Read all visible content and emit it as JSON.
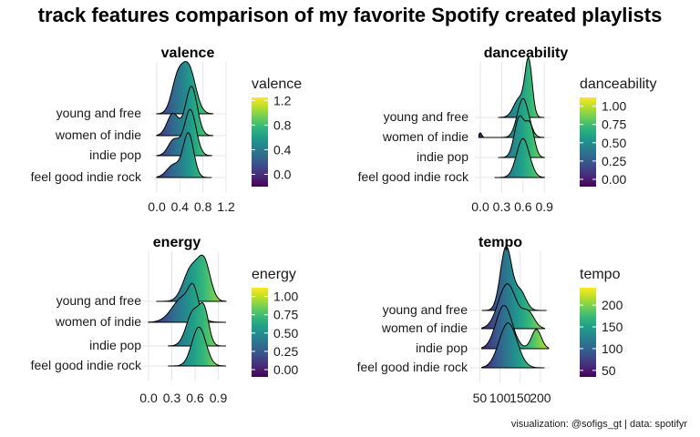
{
  "title": "track features comparison of my favorite Spotify created playlists",
  "caption": "visualization: @sofigs_gt | data: spotifyr",
  "chart_data": [
    {
      "type": "ridgeline",
      "title": "valence",
      "legend_title": "valence",
      "categories": [
        "feel good indie rock",
        "indie pop",
        "women of indie",
        "young and free"
      ],
      "xlim": [
        0.0,
        1.2
      ],
      "x_ticks": [
        "0.0",
        "0.4",
        "0.8",
        "1.2"
      ],
      "color_scale": {
        "min": -0.2,
        "max": 1.25,
        "ticks": [
          1.2,
          0.8,
          0.4,
          0.0
        ],
        "tick_labels": [
          "1.2",
          "0.8",
          "0.4",
          "0.0"
        ]
      },
      "series": [
        {
          "name": "feel good indie rock",
          "peaks": [
            [
              0.3,
              0.12,
              0.3
            ],
            [
              0.55,
              0.09,
              1.0
            ]
          ],
          "range": [
            0.0,
            0.95
          ]
        },
        {
          "name": "indie pop",
          "peaks": [
            [
              0.3,
              0.1,
              0.35
            ],
            [
              0.58,
              0.1,
              1.0
            ]
          ],
          "range": [
            0.0,
            0.95
          ]
        },
        {
          "name": "women of indie",
          "peaks": [
            [
              0.28,
              0.1,
              0.45
            ],
            [
              0.6,
              0.1,
              1.0
            ]
          ],
          "range": [
            0.0,
            0.97
          ]
        },
        {
          "name": "young and free",
          "peaks": [
            [
              0.35,
              0.1,
              0.65
            ],
            [
              0.55,
              0.12,
              1.0
            ]
          ],
          "range": [
            0.0,
            0.97
          ]
        }
      ]
    },
    {
      "type": "ridgeline",
      "title": "danceability",
      "legend_title": "danceability",
      "categories": [
        "feel good indie rock",
        "indie pop",
        "women of indie",
        "young and free"
      ],
      "xlim": [
        0.0,
        1.0
      ],
      "x_ticks": [
        "0.0",
        "0.3",
        "0.6",
        "0.9"
      ],
      "color_scale": {
        "min": -0.1,
        "max": 1.12,
        "ticks": [
          1.0,
          0.75,
          0.5,
          0.25,
          0.0
        ],
        "tick_labels": [
          "1.00",
          "0.75",
          "0.50",
          "0.25",
          "0.00"
        ]
      },
      "series": [
        {
          "name": "feel good indie rock",
          "peaks": [
            [
              0.6,
              0.09,
              1.0
            ]
          ],
          "range": [
            0.2,
            0.9
          ]
        },
        {
          "name": "indie pop",
          "peaks": [
            [
              0.55,
              0.07,
              0.9
            ],
            [
              0.7,
              0.06,
              0.7
            ]
          ],
          "range": [
            0.25,
            0.9
          ]
        },
        {
          "name": "women of indie",
          "peaks": [
            [
              0.0,
              0.02,
              0.12
            ],
            [
              0.6,
              0.08,
              1.0
            ]
          ],
          "range": [
            -0.02,
            0.9
          ]
        },
        {
          "name": "young and free",
          "peaks": [
            [
              0.68,
              0.05,
              1.0
            ],
            [
              0.55,
              0.08,
              0.35
            ]
          ],
          "range": [
            0.25,
            0.9
          ]
        }
      ]
    },
    {
      "type": "ridgeline",
      "title": "energy",
      "legend_title": "energy",
      "categories": [
        "feel good indie rock",
        "indie pop",
        "women of indie",
        "young and free"
      ],
      "xlim": [
        0.0,
        1.0
      ],
      "x_ticks": [
        "0.0",
        "0.3",
        "0.6",
        "0.9"
      ],
      "color_scale": {
        "min": -0.1,
        "max": 1.12,
        "ticks": [
          1.0,
          0.75,
          0.5,
          0.25,
          0.0
        ],
        "tick_labels": [
          "1.00",
          "0.75",
          "0.50",
          "0.25",
          "0.00"
        ]
      },
      "series": [
        {
          "name": "feel good indie rock",
          "peaks": [
            [
              0.65,
              0.09,
              1.0
            ]
          ],
          "range": [
            0.25,
            1.0
          ]
        },
        {
          "name": "indie pop",
          "peaks": [
            [
              0.58,
              0.09,
              0.8
            ],
            [
              0.72,
              0.06,
              0.7
            ]
          ],
          "range": [
            0.25,
            1.0
          ]
        },
        {
          "name": "women of indie",
          "peaks": [
            [
              0.45,
              0.14,
              0.7
            ],
            [
              0.58,
              0.06,
              0.6
            ]
          ],
          "range": [
            0.0,
            1.0
          ]
        },
        {
          "name": "young and free",
          "peaks": [
            [
              0.55,
              0.1,
              0.85
            ],
            [
              0.72,
              0.08,
              0.95
            ]
          ],
          "range": [
            0.1,
            1.0
          ]
        }
      ]
    },
    {
      "type": "ridgeline",
      "title": "tempo",
      "legend_title": "tempo",
      "categories": [
        "feel good indie rock",
        "indie pop",
        "women of indie",
        "young and free"
      ],
      "xlim": [
        40,
        225
      ],
      "x_ticks": [
        "50",
        "100",
        "150",
        "200"
      ],
      "color_scale": {
        "min": 35,
        "max": 240,
        "ticks": [
          200,
          150,
          100,
          50
        ],
        "tick_labels": [
          "200",
          "150",
          "100",
          "50"
        ]
      },
      "series": [
        {
          "name": "feel good indie rock",
          "peaks": [
            [
              120,
              22,
              1.0
            ]
          ],
          "range": [
            55,
            210
          ]
        },
        {
          "name": "indie pop",
          "peaks": [
            [
              110,
              20,
              0.9
            ],
            [
              190,
              12,
              0.4
            ]
          ],
          "range": [
            55,
            220
          ]
        },
        {
          "name": "women of indie",
          "peaks": [
            [
              118,
              22,
              1.0
            ],
            [
              170,
              15,
              0.35
            ]
          ],
          "range": [
            55,
            210
          ]
        },
        {
          "name": "young and free",
          "peaks": [
            [
              115,
              14,
              1.0
            ],
            [
              150,
              14,
              0.3
            ]
          ],
          "range": [
            55,
            215
          ]
        }
      ]
    }
  ]
}
